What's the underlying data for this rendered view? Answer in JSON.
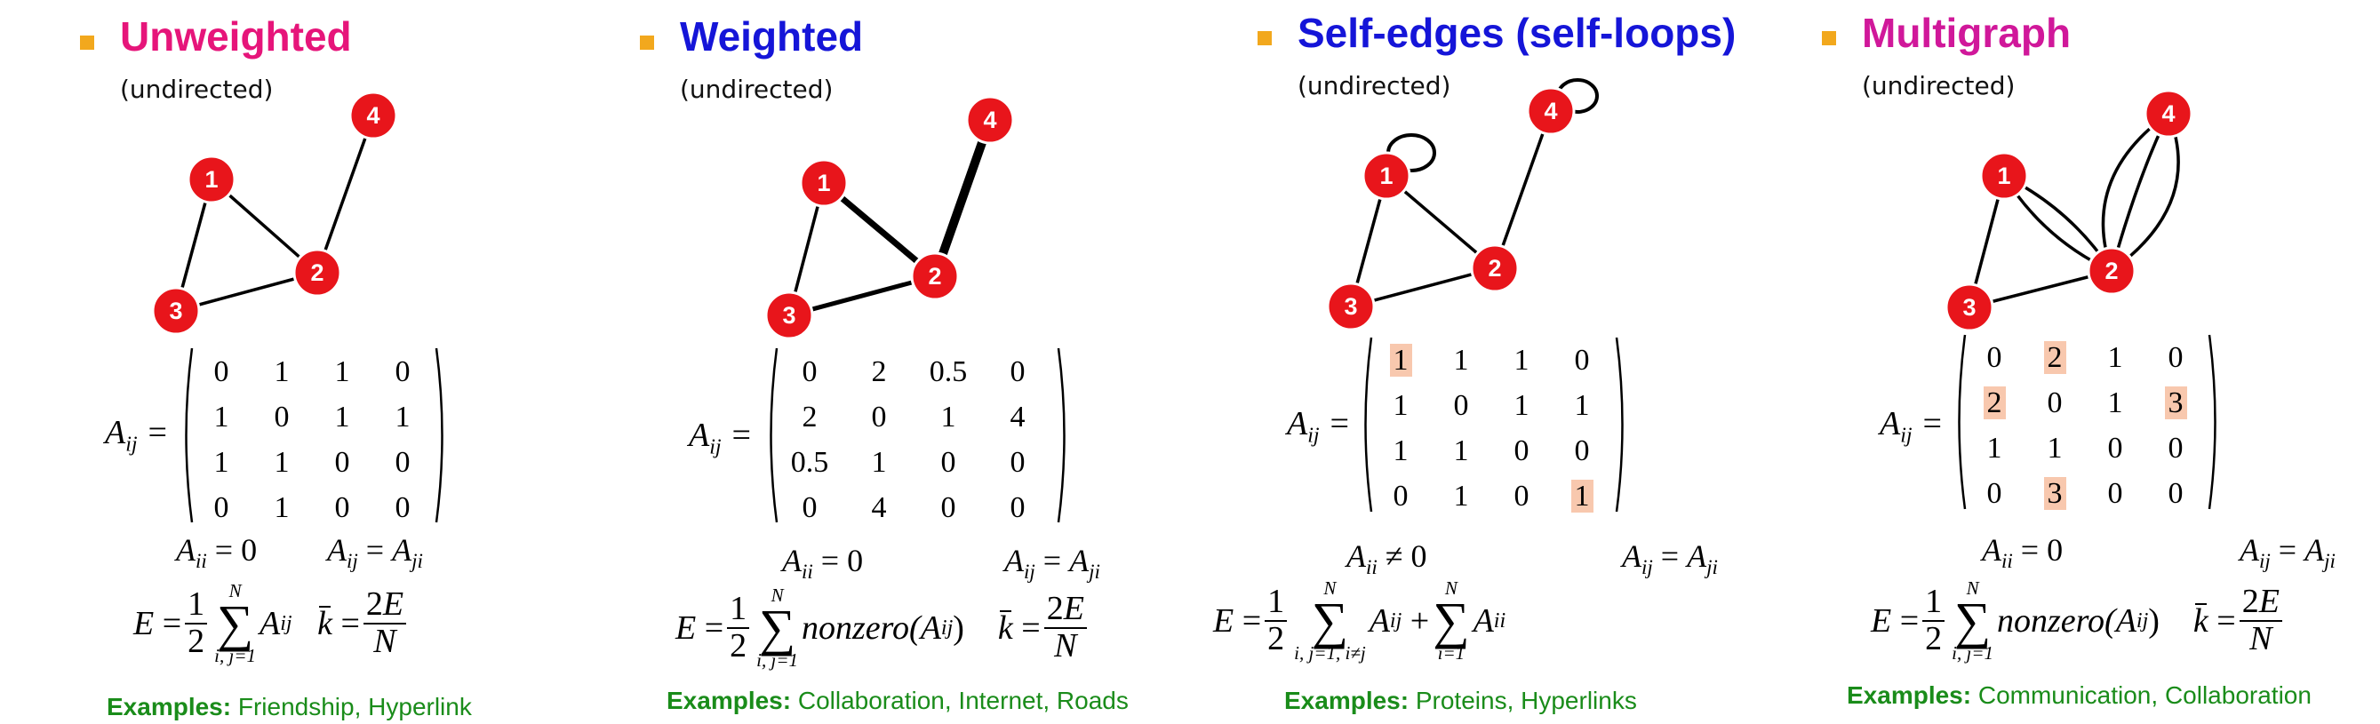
{
  "colors": {
    "bullet": "#f2a81d",
    "node": "#e8151b",
    "examples": "#1a8c1a",
    "highlight": "#f8c8ae"
  },
  "panels": [
    {
      "title": "Unweighted",
      "title_color": "#e6157a",
      "subtitle": "(undirected)",
      "nodes": [
        "1",
        "2",
        "3",
        "4"
      ],
      "matrix": [
        [
          "0",
          "1",
          "1",
          "0"
        ],
        [
          "1",
          "0",
          "1",
          "1"
        ],
        [
          "1",
          "1",
          "0",
          "0"
        ],
        [
          "0",
          "1",
          "0",
          "0"
        ]
      ],
      "prop_diag": "= 0",
      "prop_sym": "=",
      "formula_sum_upper": "N",
      "formula_sum_lower": "i, j=1",
      "formula_term": "",
      "examples_label": "Examples:",
      "examples_text": "Friendship, Hyperlink"
    },
    {
      "title": "Weighted",
      "title_color": "#1515d8",
      "subtitle": "(undirected)",
      "nodes": [
        "1",
        "2",
        "3",
        "4"
      ],
      "matrix": [
        [
          "0",
          "2",
          "0.5",
          "0"
        ],
        [
          "2",
          "0",
          "1",
          "4"
        ],
        [
          "0.5",
          "1",
          "0",
          "0"
        ],
        [
          "0",
          "4",
          "0",
          "0"
        ]
      ],
      "prop_diag": "= 0",
      "prop_sym": "=",
      "formula_sum_upper": "N",
      "formula_sum_lower": "i, j=1",
      "formula_term": "nonzero(",
      "examples_label": "Examples:",
      "examples_text": "Collaboration, Internet, Roads"
    },
    {
      "title": "Self-edges (self-loops)",
      "title_color": "#1515d8",
      "subtitle": "(undirected)",
      "nodes": [
        "1",
        "2",
        "3",
        "4"
      ],
      "matrix": [
        [
          "1",
          "1",
          "1",
          "0"
        ],
        [
          "1",
          "0",
          "1",
          "1"
        ],
        [
          "1",
          "1",
          "0",
          "0"
        ],
        [
          "0",
          "1",
          "0",
          "1"
        ]
      ],
      "highlighted": [
        [
          0,
          0
        ],
        [
          3,
          3
        ]
      ],
      "prop_diag": "≠ 0",
      "prop_sym": "=",
      "formula_sum_upper": "N",
      "formula_sum_lower": "i, j=1, i≠j",
      "formula_sum2_upper": "N",
      "formula_sum2_lower": "i=1",
      "examples_label": "Examples:",
      "examples_text": "Proteins, Hyperlinks"
    },
    {
      "title": "Multigraph",
      "title_color": "#d0189a",
      "subtitle": "(undirected)",
      "nodes": [
        "1",
        "2",
        "3",
        "4"
      ],
      "matrix": [
        [
          "0",
          "2",
          "1",
          "0"
        ],
        [
          "2",
          "0",
          "1",
          "3"
        ],
        [
          "1",
          "1",
          "0",
          "0"
        ],
        [
          "0",
          "3",
          "0",
          "0"
        ]
      ],
      "highlighted": [
        [
          0,
          1
        ],
        [
          1,
          0
        ],
        [
          1,
          3
        ],
        [
          3,
          1
        ]
      ],
      "prop_diag": "= 0",
      "prop_sym": "=",
      "formula_sum_upper": "N",
      "formula_sum_lower": "i, j=1",
      "formula_term": "nonzero(",
      "examples_label": "Examples:",
      "examples_text": "Communication, Collaboration"
    }
  ]
}
